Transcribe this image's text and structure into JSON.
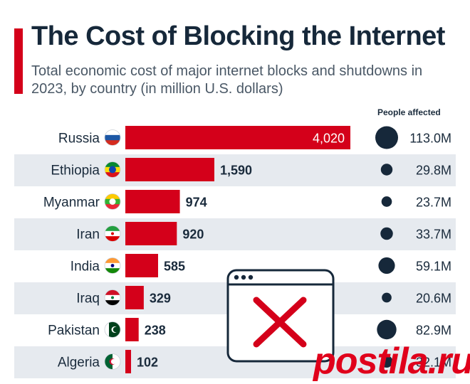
{
  "header": {
    "title": "The Cost of Blocking the Internet",
    "subtitle": "Total economic cost of major internet blocks and shutdowns in 2023, by country (in million U.S. dollars)"
  },
  "people_column_header": "People affected",
  "watermark": "postila.ru",
  "colors": {
    "bar": "#d4001a",
    "accent": "#d4001a",
    "row_stripe": "#e6eaef",
    "bubble": "#16283a",
    "cross": "#d4001a"
  },
  "chart_data": {
    "type": "bar",
    "orientation": "horizontal",
    "title": "The Cost of Blocking the Internet",
    "subtitle": "Total economic cost of major internet blocks and shutdowns in 2023, by country (in million U.S. dollars)",
    "categories": [
      "Russia",
      "Ethiopia",
      "Myanmar",
      "Iran",
      "India",
      "Iraq",
      "Pakistan",
      "Algeria"
    ],
    "series": [
      {
        "values": [
          4020,
          1590,
          974,
          920,
          585,
          329,
          238,
          102
        ]
      }
    ],
    "value_labels": [
      "4,020",
      "1,590",
      "974",
      "920",
      "585",
      "329",
      "238",
      "102"
    ],
    "people_affected": {
      "header": "People affected",
      "values": [
        113.0,
        29.8,
        23.7,
        33.7,
        59.1,
        20.6,
        82.9,
        32.1
      ],
      "labels": [
        "113.0M",
        "29.8M",
        "23.7M",
        "33.7M",
        "59.1M",
        "20.6M",
        "82.9M",
        "32.1M"
      ]
    },
    "flags": [
      "russia-flag-icon",
      "ethiopia-flag-icon",
      "myanmar-flag-icon",
      "iran-flag-icon",
      "india-flag-icon",
      "iraq-flag-icon",
      "pakistan-flag-icon",
      "algeria-flag-icon"
    ],
    "xlim": [
      0,
      4020
    ],
    "grid": false,
    "legend": "none"
  }
}
